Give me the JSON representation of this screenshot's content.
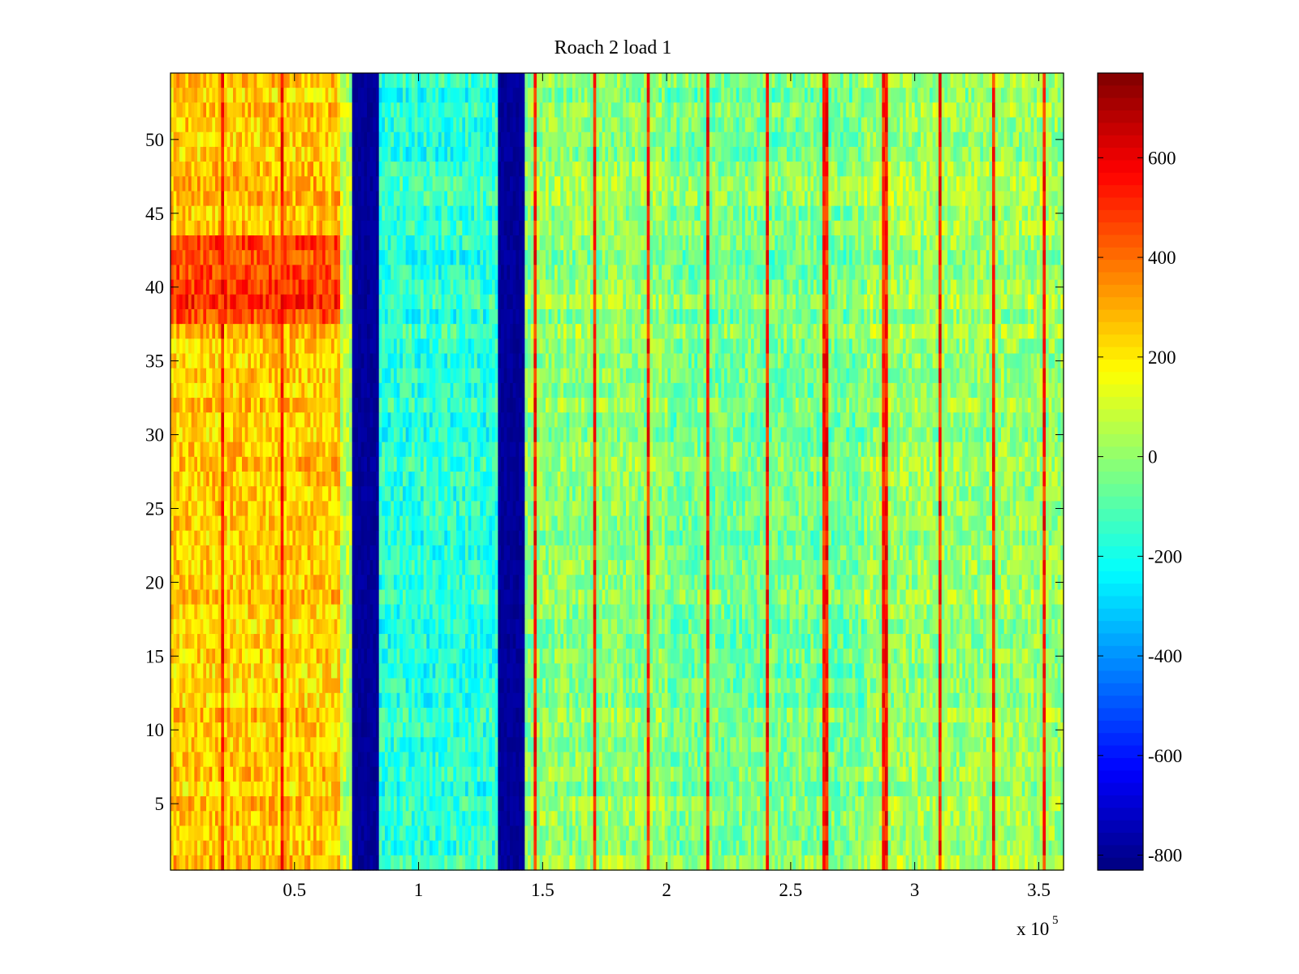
{
  "chart_data": {
    "type": "heatmap",
    "title": "Roach 2 load 1",
    "xlabel": "",
    "ylabel": "",
    "x_range": [
      0,
      360000
    ],
    "y_range": [
      0.5,
      54.5
    ],
    "rows": 54,
    "x_ticks": [
      {
        "value": 50000,
        "label": "0.5"
      },
      {
        "value": 100000,
        "label": "1"
      },
      {
        "value": 150000,
        "label": "1.5"
      },
      {
        "value": 200000,
        "label": "2"
      },
      {
        "value": 250000,
        "label": "2.5"
      },
      {
        "value": 300000,
        "label": "3"
      },
      {
        "value": 350000,
        "label": "3.5"
      }
    ],
    "x_multiplier": {
      "base": "x 10",
      "exponent": "5"
    },
    "y_ticks": [
      {
        "value": 5,
        "label": "5"
      },
      {
        "value": 10,
        "label": "10"
      },
      {
        "value": 15,
        "label": "15"
      },
      {
        "value": 20,
        "label": "20"
      },
      {
        "value": 25,
        "label": "25"
      },
      {
        "value": 30,
        "label": "30"
      },
      {
        "value": 35,
        "label": "35"
      },
      {
        "value": 40,
        "label": "40"
      },
      {
        "value": 45,
        "label": "45"
      },
      {
        "value": 50,
        "label": "50"
      }
    ],
    "colorbar": {
      "colormap": "jet",
      "range": [
        -830,
        770
      ],
      "ticks": [
        {
          "value": -800,
          "label": "-800"
        },
        {
          "value": -600,
          "label": "-600"
        },
        {
          "value": -400,
          "label": "-400"
        },
        {
          "value": -200,
          "label": "-200"
        },
        {
          "value": 0,
          "label": "0"
        },
        {
          "value": 200,
          "label": "200"
        },
        {
          "value": 400,
          "label": "400"
        },
        {
          "value": 600,
          "label": "600"
        }
      ]
    },
    "bands": [
      {
        "x_start": 0,
        "x_end": 68000,
        "value": 260
      },
      {
        "x_start": 68000,
        "x_end": 73000,
        "value": 60
      },
      {
        "x_start": 73000,
        "x_end": 84000,
        "value": -790
      },
      {
        "x_start": 84000,
        "x_end": 132000,
        "value": -160
      },
      {
        "x_start": 132000,
        "x_end": 143000,
        "value": -790
      },
      {
        "x_start": 143000,
        "x_end": 200000,
        "value": 0
      },
      {
        "x_start": 200000,
        "x_end": 280000,
        "value": -40
      },
      {
        "x_start": 280000,
        "x_end": 360000,
        "value": 20
      }
    ],
    "hot_rows": {
      "from": 38,
      "to": 43,
      "extra": 220,
      "x_end": 68000
    },
    "spike_columns_x": [
      21000,
      45000,
      147000,
      171000,
      193000,
      217000,
      241000,
      264000,
      288000,
      310000,
      332000,
      352000
    ]
  }
}
